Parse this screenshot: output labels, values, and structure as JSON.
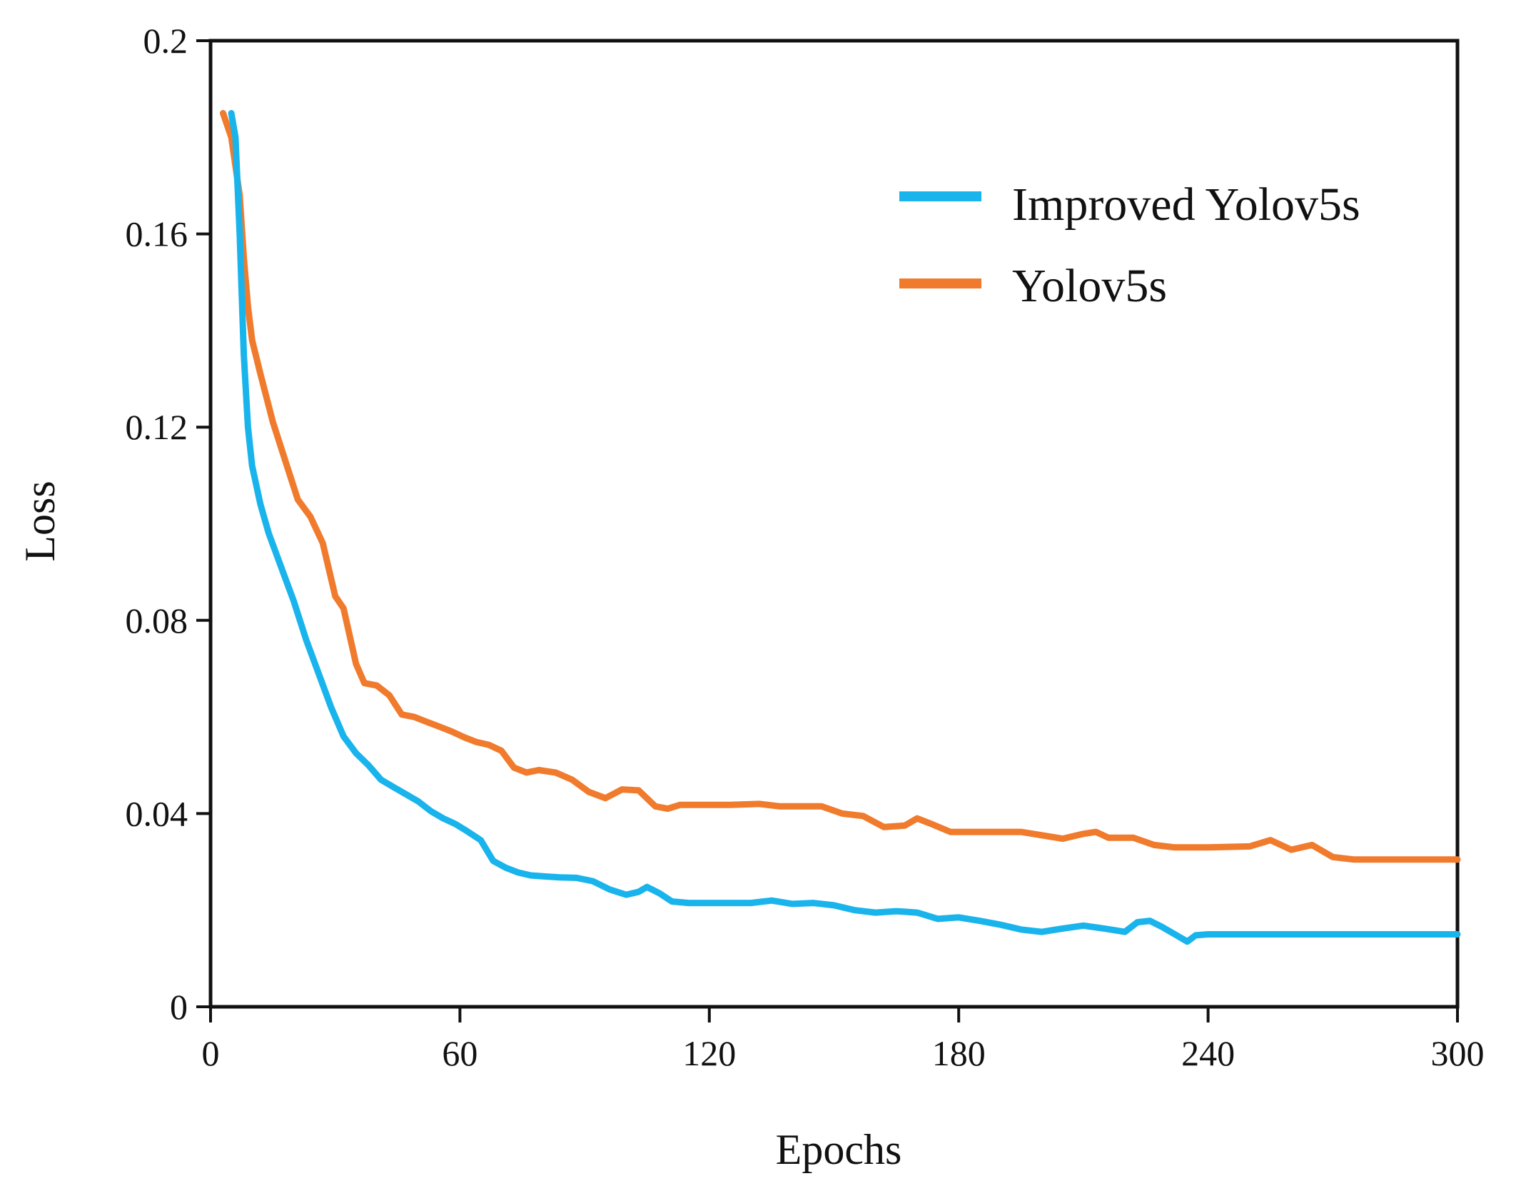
{
  "chart_data": {
    "type": "line",
    "title": "",
    "xlabel": "Epochs",
    "ylabel": "Loss",
    "xlim": [
      0,
      300
    ],
    "ylim": [
      0,
      0.2
    ],
    "xticks": [
      0,
      60,
      120,
      180,
      240,
      300
    ],
    "yticks": [
      0,
      0.04,
      0.08,
      0.12,
      0.16,
      0.2
    ],
    "xtick_labels": [
      "0",
      "60",
      "120",
      "180",
      "240",
      "300"
    ],
    "ytick_labels": [
      "0",
      "0.04",
      "0.08",
      "0.12",
      "0.16",
      "0.2"
    ],
    "grid": false,
    "legend_position": "top-right",
    "series": [
      {
        "name": "Improved Yolov5s",
        "color": "#19b4ec",
        "x": [
          5,
          6,
          7,
          8,
          9,
          10,
          12,
          14,
          17,
          20,
          23,
          26,
          29,
          32,
          35,
          38,
          41,
          44,
          47,
          50,
          53,
          56,
          59,
          62,
          65,
          68,
          71,
          74,
          77,
          80,
          84,
          88,
          92,
          96,
          100,
          103,
          105,
          108,
          111,
          115,
          120,
          125,
          130,
          135,
          140,
          145,
          150,
          155,
          160,
          165,
          170,
          175,
          180,
          185,
          190,
          195,
          200,
          205,
          210,
          215,
          220,
          223,
          226,
          229,
          232,
          235,
          237,
          240,
          250,
          260,
          270,
          280,
          290,
          300
        ],
        "values": [
          0.185,
          0.18,
          0.16,
          0.135,
          0.12,
          0.112,
          0.104,
          0.098,
          0.091,
          0.084,
          0.076,
          0.069,
          0.062,
          0.056,
          0.0525,
          0.05,
          0.047,
          0.0455,
          0.044,
          0.0425,
          0.0405,
          0.039,
          0.0378,
          0.0362,
          0.0345,
          0.0302,
          0.0288,
          0.0278,
          0.0272,
          0.027,
          0.0268,
          0.0267,
          0.026,
          0.0243,
          0.0232,
          0.0238,
          0.0248,
          0.0235,
          0.0218,
          0.0215,
          0.0215,
          0.0215,
          0.0215,
          0.022,
          0.0213,
          0.0215,
          0.021,
          0.02,
          0.0195,
          0.0198,
          0.0195,
          0.0182,
          0.0185,
          0.0178,
          0.017,
          0.016,
          0.0155,
          0.0162,
          0.0168,
          0.0162,
          0.0155,
          0.0175,
          0.0178,
          0.0165,
          0.015,
          0.0135,
          0.0148,
          0.015,
          0.015,
          0.015,
          0.015,
          0.015,
          0.015,
          0.015
        ]
      },
      {
        "name": "Yolov5s",
        "color": "#f07b2d",
        "x": [
          3,
          5,
          7,
          8,
          9,
          10,
          12,
          15,
          18,
          21,
          24,
          27,
          30,
          32,
          35,
          37,
          40,
          43,
          46,
          49,
          52,
          55,
          58,
          61,
          64,
          67,
          70,
          73,
          76,
          79,
          83,
          87,
          91,
          95,
          99,
          103,
          107,
          110,
          113,
          118,
          125,
          132,
          137,
          142,
          147,
          152,
          157,
          162,
          167,
          170,
          173,
          178,
          185,
          195,
          200,
          205,
          210,
          213,
          216,
          222,
          227,
          232,
          240,
          250,
          255,
          260,
          265,
          270,
          275,
          285,
          300
        ],
        "values": [
          0.185,
          0.18,
          0.168,
          0.155,
          0.145,
          0.138,
          0.131,
          0.121,
          0.113,
          0.105,
          0.1015,
          0.096,
          0.085,
          0.0825,
          0.071,
          0.067,
          0.0665,
          0.0645,
          0.0605,
          0.06,
          0.059,
          0.058,
          0.057,
          0.0558,
          0.0548,
          0.0542,
          0.053,
          0.0495,
          0.0485,
          0.049,
          0.0485,
          0.047,
          0.0445,
          0.0432,
          0.045,
          0.0448,
          0.0415,
          0.041,
          0.0418,
          0.0418,
          0.0418,
          0.042,
          0.0415,
          0.0415,
          0.0415,
          0.04,
          0.0395,
          0.0372,
          0.0375,
          0.039,
          0.038,
          0.0362,
          0.0362,
          0.0362,
          0.0355,
          0.0348,
          0.0358,
          0.0362,
          0.035,
          0.035,
          0.0335,
          0.033,
          0.033,
          0.0332,
          0.0345,
          0.0325,
          0.0335,
          0.031,
          0.0305,
          0.0305,
          0.0305
        ]
      }
    ]
  }
}
